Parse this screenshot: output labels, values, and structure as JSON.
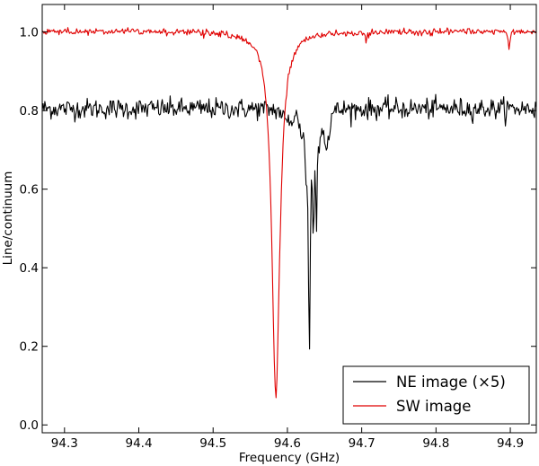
{
  "chart_data": {
    "type": "line",
    "xlabel": "Frequency (GHz)",
    "ylabel": "Line/continuum",
    "xlim": [
      94.27,
      94.935
    ],
    "ylim": [
      -0.02,
      1.07
    ],
    "xticks": [
      94.3,
      94.4,
      94.5,
      94.6,
      94.7,
      94.8,
      94.9
    ],
    "xtick_labels": [
      "94.3",
      "94.4",
      "94.5",
      "94.6",
      "94.7",
      "94.8",
      "94.9"
    ],
    "yticks": [
      0.0,
      0.2,
      0.4,
      0.6,
      0.8,
      1.0
    ],
    "ytick_labels": [
      "0.0",
      "0.2",
      "0.4",
      "0.6",
      "0.8",
      "1.0"
    ],
    "legend_position": "lower-right",
    "series": [
      {
        "name": "NE image (×5)",
        "color": "#000000",
        "baseline": 0.805,
        "noise": 0.013,
        "features": [
          {
            "center": 94.598,
            "depth": 0.03,
            "width": 0.004
          },
          {
            "center": 94.605,
            "depth": 0.02,
            "width": 0.003
          },
          {
            "center": 94.618,
            "depth": 0.05,
            "width": 0.002
          },
          {
            "center": 94.625,
            "depth": 0.13,
            "width": 0.0018
          },
          {
            "center": 94.6295,
            "depth": 0.6,
            "width": 0.0014
          },
          {
            "center": 94.635,
            "depth": 0.3,
            "width": 0.0012
          },
          {
            "center": 94.639,
            "depth": 0.27,
            "width": 0.001
          },
          {
            "center": 94.643,
            "depth": 0.08,
            "width": 0.0015
          },
          {
            "center": 94.652,
            "depth": 0.1,
            "width": 0.002
          },
          {
            "center": 94.656,
            "depth": 0.05,
            "width": 0.0015
          }
        ]
      },
      {
        "name": "SW image",
        "color": "#e00000",
        "baseline": 1.002,
        "noise": 0.004,
        "features": [
          {
            "center": 94.5845,
            "depth": 0.93,
            "width": 0.0065
          },
          {
            "center": 94.527,
            "depth": 0.012,
            "width": 0.001
          },
          {
            "center": 94.706,
            "depth": 0.025,
            "width": 0.0012
          },
          {
            "center": 94.8985,
            "depth": 0.045,
            "width": 0.0015
          }
        ]
      }
    ]
  }
}
